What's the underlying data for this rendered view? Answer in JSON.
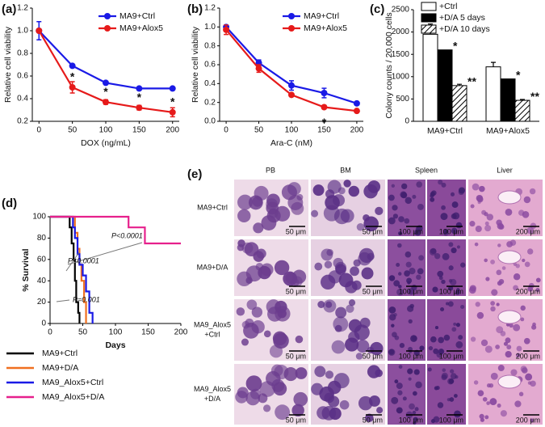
{
  "chart_data": [
    {
      "type": "line",
      "panel_label": "(a)",
      "x_label": "DOX (ng/mL)",
      "y_label": "Relative cell viability",
      "x": [
        0,
        50,
        100,
        150,
        200
      ],
      "xlim": [
        -10,
        210
      ],
      "xticks": [
        0,
        50,
        100,
        150,
        200
      ],
      "ylim": [
        0.2,
        1.2
      ],
      "yticks": [
        0.2,
        0.4,
        0.6,
        0.8,
        {
          "value": 1,
          "label": "1.0"
        },
        1.2
      ],
      "legend": "upper right",
      "series": [
        {
          "name": "MA9+Ctrl",
          "color": "#1a1ae6",
          "values": [
            1.0,
            0.69,
            0.54,
            0.49,
            0.49
          ],
          "errors": [
            0.08,
            null,
            null,
            null,
            null
          ]
        },
        {
          "name": "MA9+Alox5",
          "color": "#e61a1a",
          "values": [
            1.0,
            0.5,
            0.37,
            0.32,
            0.28
          ],
          "errors": [
            null,
            0.05,
            0.02,
            0.02,
            0.04
          ]
        }
      ],
      "annotations": [
        "*",
        "*",
        "*",
        "*"
      ]
    },
    {
      "type": "line",
      "panel_label": "(b)",
      "x_label": "Ara-C (nM)",
      "y_label": "Relative cell viability",
      "x": [
        0,
        50,
        100,
        150,
        200
      ],
      "xlim": [
        -10,
        210
      ],
      "xticks": [
        0,
        50,
        100,
        150,
        200
      ],
      "ylim": [
        0,
        1.2
      ],
      "yticks": [
        {
          "value": 0,
          "label": "0.0"
        },
        0.2,
        0.4,
        0.6,
        0.8,
        {
          "value": 1,
          "label": "1.0"
        },
        1.2
      ],
      "legend": "upper right",
      "series": [
        {
          "name": "MA9+Ctrl",
          "color": "#1a1ae6",
          "values": [
            1.0,
            0.62,
            0.38,
            0.3,
            0.19
          ],
          "errors": [
            null,
            0.03,
            0.05,
            0.05,
            null
          ]
        },
        {
          "name": "MA9+Alox5",
          "color": "#e61a1a",
          "values": [
            0.97,
            0.56,
            0.28,
            0.15,
            0.11
          ],
          "errors": [
            0.05,
            0.04,
            null,
            null,
            null
          ]
        }
      ],
      "annotations": [
        "*"
      ]
    },
    {
      "type": "bar",
      "panel_label": "(c)",
      "y_label": "Colony counts / 20,000 cells",
      "categories": [
        "MA9+Ctrl",
        "MA9+Alox5"
      ],
      "ylim": [
        0,
        2500
      ],
      "yticks": [
        0,
        500,
        1000,
        1500,
        2000,
        2500
      ],
      "legend": "upper left",
      "series": [
        {
          "name": "+Ctrl",
          "color": "#ffffff",
          "values": [
            1950,
            1220
          ],
          "errors": [
            230,
            100
          ]
        },
        {
          "name": "+D/A 5 days",
          "color": "#000000",
          "values": [
            1600,
            950
          ],
          "errors": [
            null,
            null
          ]
        },
        {
          "name": "+D/A 10 days",
          "color": "#ffffff",
          "pattern": "hatch",
          "values": [
            800,
            470
          ],
          "errors": [
            30,
            20
          ]
        }
      ],
      "annotations": [
        "*",
        "**",
        "*",
        "**"
      ]
    },
    {
      "type": "step",
      "panel_label": "(d)",
      "x_label": "Days",
      "y_label": "% Survival",
      "xlim": [
        0,
        200
      ],
      "xticks": [
        0,
        50,
        100,
        150,
        200
      ],
      "ylim": [
        0,
        100
      ],
      "yticks": [
        0,
        20,
        40,
        60,
        80,
        100
      ],
      "legend": "bottom",
      "series": [
        {
          "name": "MA9+Ctrl",
          "color": "#000000",
          "x": [
            0,
            30,
            33,
            36,
            38,
            40,
            43,
            45
          ],
          "values": [
            100,
            90,
            75,
            60,
            40,
            20,
            10,
            0
          ]
        },
        {
          "name": "MA9+D/A",
          "color": "#f07020",
          "x": [
            0,
            38,
            42,
            45,
            48,
            52,
            55
          ],
          "values": [
            100,
            85,
            70,
            55,
            40,
            20,
            0
          ]
        },
        {
          "name": "MA9_Alox5+Ctrl",
          "color": "#1a1ae6",
          "x": [
            0,
            35,
            38,
            42,
            45,
            50,
            55,
            60,
            65
          ],
          "values": [
            100,
            90,
            80,
            65,
            55,
            45,
            30,
            10,
            0
          ]
        },
        {
          "name": "MA9_Alox5+D/A",
          "color": "#e6208c",
          "x": [
            0,
            120,
            145,
            200
          ],
          "values": [
            100,
            90,
            75,
            75
          ]
        }
      ],
      "annotations": [
        "P<0.0001",
        "P<0.0001",
        "P=0.001"
      ]
    }
  ],
  "panel_e": {
    "label": "(e)",
    "columns": [
      "PB",
      "BM",
      "Spleen",
      "Liver"
    ],
    "rows": [
      [
        "MA9+Ctrl"
      ],
      [
        "MA9+D/A"
      ],
      [
        "MA9_Alox5",
        "+Ctrl"
      ],
      [
        "MA9_Alox5",
        "+D/A"
      ]
    ],
    "scale_bars": [
      [
        "50 μm",
        "50 μm",
        "100 μm",
        "100 μm",
        "200 μm"
      ],
      [
        "50 μm",
        "50 μm",
        "100 μm",
        "100 μm",
        "200 μm"
      ],
      [
        "50 μm",
        "50 μm",
        "100 μm",
        "100 μm",
        "200 μm"
      ],
      [
        "50 μm",
        "50 μm",
        "100 μm",
        "100 μm",
        "200 μm"
      ]
    ]
  }
}
